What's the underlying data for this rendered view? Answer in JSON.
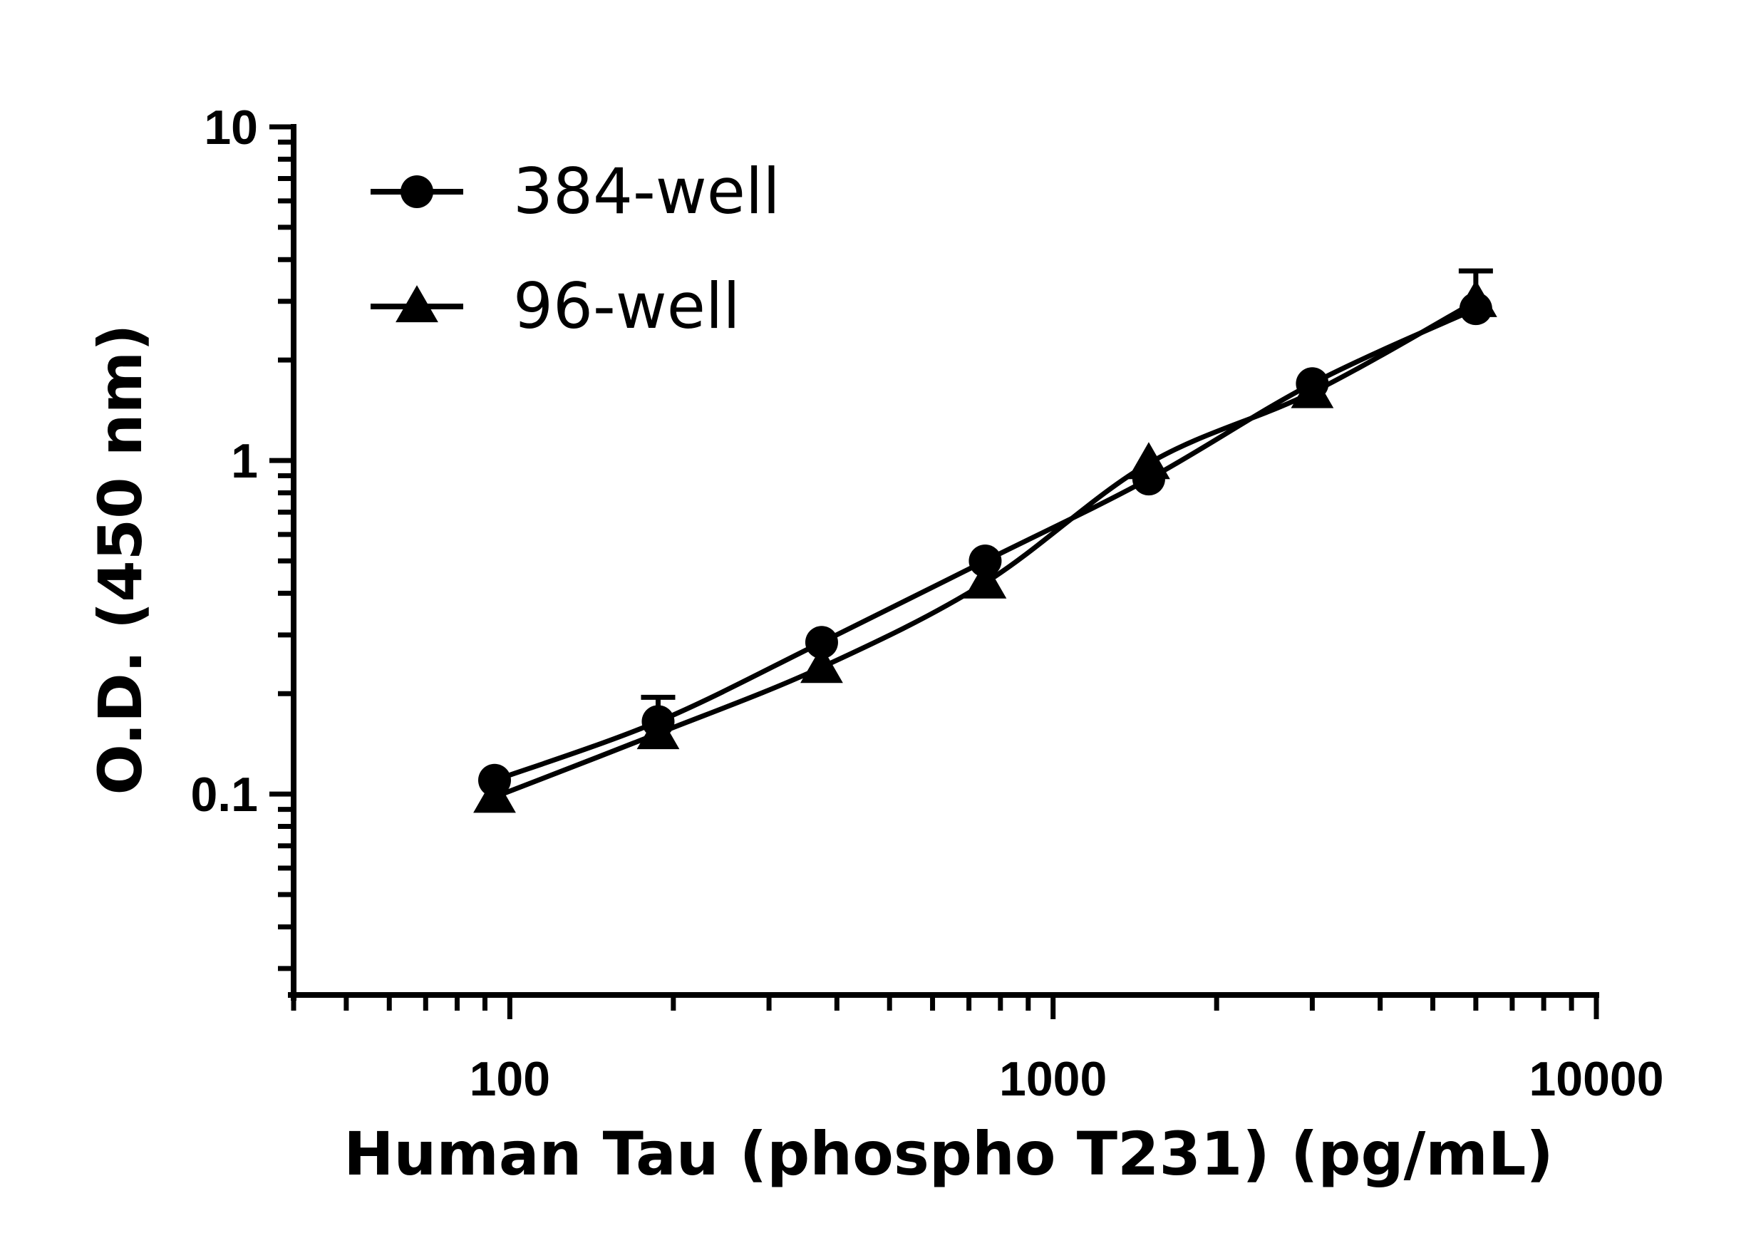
{
  "chart_data": {
    "type": "scatter",
    "xscale": "log",
    "yscale": "log",
    "xlim": [
      40,
      10000
    ],
    "ylim": [
      0.025,
      10
    ],
    "xlabel": "Human Tau (phospho T231) (pg/mL)",
    "ylabel": "O.D. (450 nm)",
    "xticks": [
      "100",
      "1000",
      "10000"
    ],
    "yticks": [
      "0.1",
      "1",
      "10"
    ],
    "grid": false,
    "legend_position": "top-left",
    "series": [
      {
        "name": "384-well",
        "marker": "circle",
        "x": [
          93.75,
          187.5,
          375,
          750,
          1500,
          3000,
          6000
        ],
        "y": [
          0.11,
          0.165,
          0.285,
          0.5,
          0.88,
          1.7,
          2.85
        ],
        "error_upper": [
          0,
          0.03,
          0,
          0,
          0,
          0,
          0.85
        ]
      },
      {
        "name": "96-well",
        "marker": "triangle",
        "x": [
          93.75,
          187.5,
          375,
          750,
          1500,
          3000,
          6000
        ],
        "y": [
          0.098,
          0.152,
          0.24,
          0.43,
          0.98,
          1.6,
          3.0
        ],
        "error_upper": [
          0,
          0,
          0,
          0,
          0,
          0,
          0
        ]
      }
    ],
    "colors": {
      "line": "#000000",
      "marker": "#000000"
    }
  }
}
